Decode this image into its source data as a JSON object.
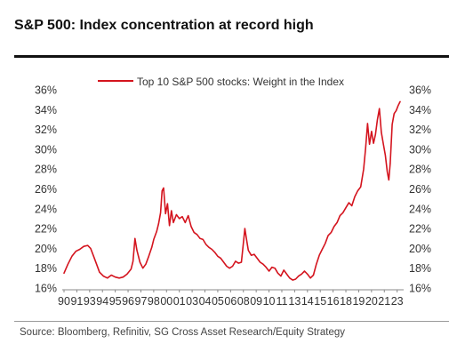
{
  "header": {
    "title": "S&P 500: Index concentration at record high"
  },
  "footer": {
    "source": "Source: Bloomberg, Refinitiv, SG Cross Asset Research/Equity Strategy"
  },
  "colors": {
    "series": "#d4141e",
    "text": "#333333"
  },
  "chart_data": {
    "type": "line",
    "title": "",
    "xlabel": "",
    "ylabel": "",
    "legend_position": "top-center",
    "grid": false,
    "xlim": [
      1990.0,
      2024.1
    ],
    "ylim": [
      16,
      36
    ],
    "y_ticks": [
      "16%",
      "18%",
      "20%",
      "22%",
      "24%",
      "26%",
      "28%",
      "30%",
      "32%",
      "34%",
      "36%"
    ],
    "y_tick_values": [
      16,
      18,
      20,
      22,
      24,
      26,
      28,
      30,
      32,
      34,
      36
    ],
    "x_ticks": [
      "90",
      "91",
      "93",
      "94",
      "95",
      "96",
      "97",
      "98",
      "00",
      "01",
      "03",
      "04",
      "05",
      "06",
      "08",
      "09",
      "10",
      "11",
      "13",
      "14",
      "15",
      "16",
      "18",
      "19",
      "20",
      "21",
      "23"
    ],
    "x_tick_values": [
      1990.0,
      1991.3,
      1992.6,
      1993.9,
      1995.2,
      1996.5,
      1997.8,
      1999.1,
      2000.4,
      2001.7,
      2003.0,
      2004.3,
      2005.6,
      2006.9,
      2008.2,
      2009.5,
      2010.8,
      2012.1,
      2013.4,
      2014.7,
      2016.0,
      2017.3,
      2018.6,
      2019.9,
      2021.2,
      2022.5,
      2023.8
    ],
    "series": [
      {
        "name": "Top 10 S&P 500 stocks: Weight in the Index",
        "color": "#d4141e",
        "points": [
          [
            1990.0,
            17.5
          ],
          [
            1990.4,
            18.4
          ],
          [
            1990.8,
            19.2
          ],
          [
            1991.2,
            19.7
          ],
          [
            1991.6,
            19.9
          ],
          [
            1992.0,
            20.2
          ],
          [
            1992.4,
            20.3
          ],
          [
            1992.7,
            20.0
          ],
          [
            1993.0,
            19.2
          ],
          [
            1993.3,
            18.4
          ],
          [
            1993.6,
            17.6
          ],
          [
            1994.0,
            17.2
          ],
          [
            1994.4,
            17.0
          ],
          [
            1994.8,
            17.3
          ],
          [
            1995.2,
            17.1
          ],
          [
            1995.6,
            17.0
          ],
          [
            1996.0,
            17.1
          ],
          [
            1996.4,
            17.4
          ],
          [
            1996.8,
            17.9
          ],
          [
            1997.0,
            18.7
          ],
          [
            1997.2,
            21.0
          ],
          [
            1997.4,
            19.8
          ],
          [
            1997.7,
            18.6
          ],
          [
            1998.0,
            18.0
          ],
          [
            1998.3,
            18.4
          ],
          [
            1998.6,
            19.2
          ],
          [
            1998.9,
            20.1
          ],
          [
            1999.1,
            20.9
          ],
          [
            1999.4,
            21.7
          ],
          [
            1999.6,
            22.5
          ],
          [
            1999.8,
            23.6
          ],
          [
            1999.95,
            25.8
          ],
          [
            2000.1,
            26.1
          ],
          [
            2000.3,
            23.5
          ],
          [
            2000.5,
            24.5
          ],
          [
            2000.7,
            22.3
          ],
          [
            2000.9,
            23.8
          ],
          [
            2001.1,
            22.6
          ],
          [
            2001.4,
            23.4
          ],
          [
            2001.7,
            23.0
          ],
          [
            2002.0,
            23.2
          ],
          [
            2002.3,
            22.6
          ],
          [
            2002.6,
            23.3
          ],
          [
            2002.9,
            22.2
          ],
          [
            2003.2,
            21.6
          ],
          [
            2003.5,
            21.4
          ],
          [
            2003.8,
            21.0
          ],
          [
            2004.1,
            20.9
          ],
          [
            2004.4,
            20.4
          ],
          [
            2004.7,
            20.1
          ],
          [
            2005.0,
            19.9
          ],
          [
            2005.3,
            19.6
          ],
          [
            2005.6,
            19.2
          ],
          [
            2005.9,
            19.0
          ],
          [
            2006.2,
            18.6
          ],
          [
            2006.5,
            18.2
          ],
          [
            2006.8,
            18.0
          ],
          [
            2007.1,
            18.2
          ],
          [
            2007.4,
            18.7
          ],
          [
            2007.7,
            18.5
          ],
          [
            2008.0,
            18.6
          ],
          [
            2008.2,
            20.5
          ],
          [
            2008.35,
            22.0
          ],
          [
            2008.5,
            21.0
          ],
          [
            2008.7,
            19.8
          ],
          [
            2009.0,
            19.3
          ],
          [
            2009.3,
            19.4
          ],
          [
            2009.6,
            19.0
          ],
          [
            2009.9,
            18.6
          ],
          [
            2010.2,
            18.4
          ],
          [
            2010.5,
            18.1
          ],
          [
            2010.8,
            17.7
          ],
          [
            2011.1,
            18.1
          ],
          [
            2011.4,
            18.0
          ],
          [
            2011.7,
            17.5
          ],
          [
            2012.0,
            17.2
          ],
          [
            2012.3,
            17.8
          ],
          [
            2012.6,
            17.4
          ],
          [
            2012.9,
            17.0
          ],
          [
            2013.2,
            16.8
          ],
          [
            2013.5,
            16.9
          ],
          [
            2013.8,
            17.2
          ],
          [
            2014.1,
            17.4
          ],
          [
            2014.4,
            17.7
          ],
          [
            2014.7,
            17.4
          ],
          [
            2015.0,
            17.0
          ],
          [
            2015.3,
            17.3
          ],
          [
            2015.6,
            18.4
          ],
          [
            2015.9,
            19.3
          ],
          [
            2016.2,
            19.9
          ],
          [
            2016.5,
            20.5
          ],
          [
            2016.8,
            21.3
          ],
          [
            2017.1,
            21.6
          ],
          [
            2017.4,
            22.2
          ],
          [
            2017.7,
            22.6
          ],
          [
            2018.0,
            23.3
          ],
          [
            2018.3,
            23.6
          ],
          [
            2018.6,
            24.1
          ],
          [
            2018.9,
            24.6
          ],
          [
            2019.2,
            24.3
          ],
          [
            2019.5,
            25.2
          ],
          [
            2019.8,
            25.8
          ],
          [
            2020.1,
            26.2
          ],
          [
            2020.4,
            28.0
          ],
          [
            2020.6,
            30.1
          ],
          [
            2020.8,
            32.6
          ],
          [
            2021.0,
            30.5
          ],
          [
            2021.2,
            31.8
          ],
          [
            2021.4,
            30.6
          ],
          [
            2021.6,
            31.5
          ],
          [
            2021.8,
            33.0
          ],
          [
            2022.0,
            34.1
          ],
          [
            2022.2,
            31.7
          ],
          [
            2022.4,
            30.5
          ],
          [
            2022.6,
            29.4
          ],
          [
            2022.8,
            27.7
          ],
          [
            2022.95,
            26.9
          ],
          [
            2023.1,
            28.6
          ],
          [
            2023.3,
            32.5
          ],
          [
            2023.5,
            33.6
          ],
          [
            2023.7,
            33.9
          ],
          [
            2023.9,
            34.4
          ],
          [
            2024.1,
            34.8
          ]
        ]
      }
    ]
  }
}
